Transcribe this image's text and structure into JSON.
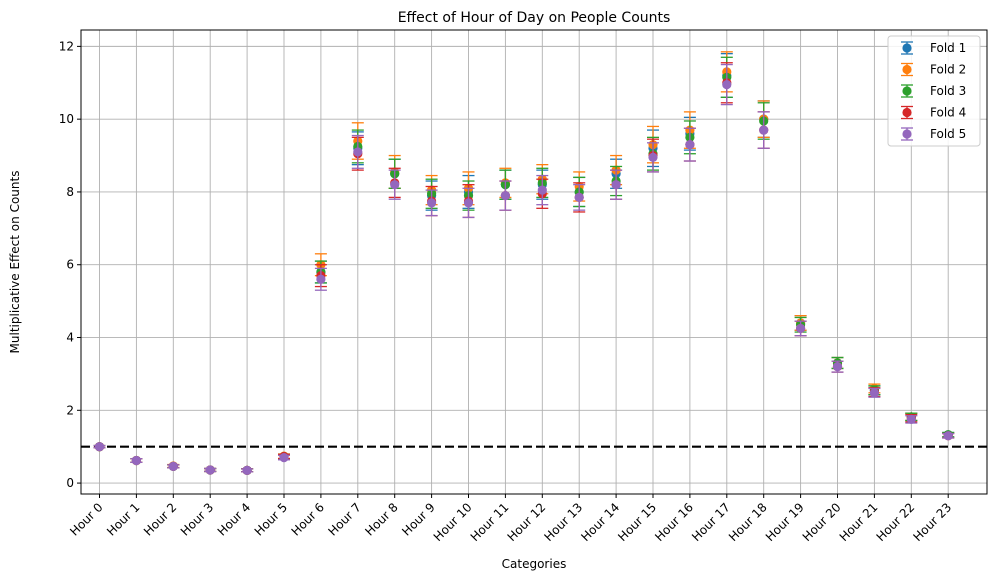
{
  "chart_data": {
    "type": "scatter",
    "title": "Effect of Hour of Day on People Counts",
    "xlabel": "Categories",
    "ylabel": "Multiplicative Effect on Counts",
    "ylim": [
      -0.3,
      12.45
    ],
    "yticks": [
      0,
      2,
      4,
      6,
      8,
      10,
      12
    ],
    "grid": true,
    "legend_position": "top-right",
    "reference_line": {
      "y": 1,
      "style": "dashed",
      "color": "#000000"
    },
    "categories": [
      "Hour 0",
      "Hour 1",
      "Hour 2",
      "Hour 3",
      "Hour 4",
      "Hour 5",
      "Hour 6",
      "Hour 7",
      "Hour 8",
      "Hour 9",
      "Hour 10",
      "Hour 11",
      "Hour 12",
      "Hour 13",
      "Hour 14",
      "Hour 15",
      "Hour 16",
      "Hour 17",
      "Hour 18",
      "Hour 19",
      "Hour 20",
      "Hour 21",
      "Hour 22",
      "Hour 23"
    ],
    "series": [
      {
        "name": "Fold 1",
        "color": "#1f77b4",
        "values": [
          1.0,
          0.62,
          0.46,
          0.36,
          0.35,
          0.73,
          5.8,
          9.2,
          8.5,
          7.9,
          8.0,
          8.2,
          8.2,
          8.0,
          8.5,
          9.2,
          9.6,
          11.2,
          10.0,
          4.4,
          3.3,
          2.55,
          1.82,
          1.33
        ],
        "err": [
          0.03,
          0.05,
          0.04,
          0.04,
          0.04,
          0.06,
          0.3,
          0.45,
          0.4,
          0.4,
          0.45,
          0.4,
          0.4,
          0.4,
          0.4,
          0.5,
          0.45,
          0.6,
          0.5,
          0.2,
          0.15,
          0.12,
          0.1,
          0.06
        ]
      },
      {
        "name": "Fold 2",
        "color": "#ff7f0e",
        "values": [
          1.0,
          0.62,
          0.47,
          0.36,
          0.35,
          0.74,
          6.0,
          9.4,
          8.55,
          8.05,
          8.1,
          8.25,
          8.35,
          8.15,
          8.6,
          9.3,
          9.7,
          11.3,
          10.0,
          4.4,
          3.3,
          2.6,
          1.82,
          1.32
        ],
        "err": [
          0.03,
          0.05,
          0.04,
          0.04,
          0.04,
          0.06,
          0.3,
          0.5,
          0.45,
          0.4,
          0.45,
          0.4,
          0.4,
          0.4,
          0.4,
          0.5,
          0.5,
          0.55,
          0.5,
          0.2,
          0.15,
          0.12,
          0.1,
          0.06
        ]
      },
      {
        "name": "Fold 3",
        "color": "#2ca02c",
        "values": [
          1.0,
          0.62,
          0.46,
          0.36,
          0.35,
          0.73,
          5.8,
          9.25,
          8.5,
          7.95,
          7.9,
          8.2,
          8.25,
          8.0,
          8.3,
          9.05,
          9.5,
          11.15,
          9.95,
          4.35,
          3.3,
          2.55,
          1.82,
          1.33
        ],
        "err": [
          0.03,
          0.05,
          0.04,
          0.04,
          0.04,
          0.06,
          0.3,
          0.45,
          0.4,
          0.4,
          0.4,
          0.4,
          0.4,
          0.4,
          0.4,
          0.45,
          0.45,
          0.55,
          0.5,
          0.2,
          0.15,
          0.12,
          0.1,
          0.06
        ]
      },
      {
        "name": "Fold 4",
        "color": "#d62728",
        "values": [
          1.0,
          0.62,
          0.46,
          0.36,
          0.35,
          0.73,
          5.7,
          9.05,
          8.25,
          7.75,
          7.75,
          7.9,
          7.95,
          7.85,
          8.2,
          9.0,
          9.3,
          11.0,
          9.7,
          4.25,
          3.2,
          2.5,
          1.78,
          1.3
        ],
        "err": [
          0.03,
          0.05,
          0.04,
          0.04,
          0.04,
          0.06,
          0.3,
          0.45,
          0.4,
          0.4,
          0.45,
          0.4,
          0.4,
          0.4,
          0.4,
          0.45,
          0.45,
          0.55,
          0.5,
          0.2,
          0.15,
          0.12,
          0.1,
          0.06
        ]
      },
      {
        "name": "Fold 5",
        "color": "#9467bd",
        "values": [
          1.0,
          0.62,
          0.46,
          0.36,
          0.35,
          0.7,
          5.6,
          9.1,
          8.2,
          7.7,
          7.7,
          7.9,
          8.05,
          7.85,
          8.2,
          8.95,
          9.3,
          10.95,
          9.7,
          4.25,
          3.2,
          2.48,
          1.75,
          1.3
        ],
        "err": [
          0.03,
          0.05,
          0.04,
          0.04,
          0.04,
          0.06,
          0.3,
          0.45,
          0.4,
          0.35,
          0.4,
          0.4,
          0.4,
          0.35,
          0.4,
          0.4,
          0.45,
          0.55,
          0.5,
          0.2,
          0.15,
          0.12,
          0.1,
          0.06
        ]
      }
    ]
  }
}
